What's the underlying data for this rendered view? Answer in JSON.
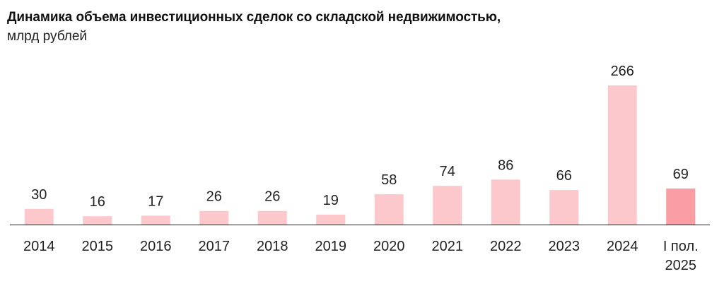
{
  "header": {
    "title": "Динамика объема инвестиционных сделок со складской недвижимостью,",
    "subtitle": "млрд рублей"
  },
  "colors": {
    "bar": "#fdc8cb",
    "highlight": "#fb9ea3",
    "axis": "#222222"
  },
  "chart_data": {
    "type": "bar",
    "title": "Динамика объема инвестиционных сделок со складской недвижимостью,",
    "subtitle": "млрд рублей",
    "categories": [
      "2014",
      "2015",
      "2016",
      "2017",
      "2018",
      "2019",
      "2020",
      "2021",
      "2022",
      "2023",
      "2024",
      "I пол.\n2025"
    ],
    "values": [
      30,
      16,
      17,
      26,
      26,
      19,
      58,
      74,
      86,
      66,
      266,
      69
    ],
    "highlight_index": 11,
    "xlabel": "",
    "ylabel": "",
    "ylim": [
      0,
      266
    ],
    "grid": false,
    "legend": "none",
    "data_labels": true
  }
}
